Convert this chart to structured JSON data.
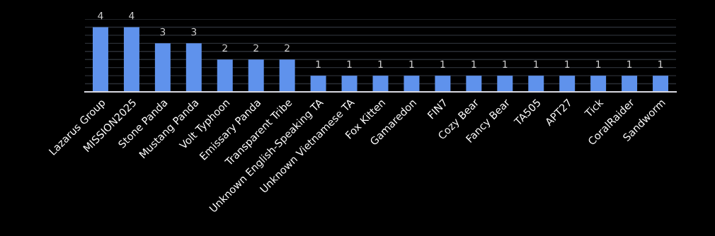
{
  "chart_data": {
    "type": "bar",
    "categories": [
      "Lazarus Group",
      "MISSION2025",
      "Stone Panda",
      "Mustang Panda",
      "Volt Typhoon",
      "Emissary Panda",
      "Transparent Tribe",
      "Unknown English-Speaking TA",
      "Unknown Vietnamese TA",
      "Fox Kitten",
      "Gamaredon",
      "FIN7",
      "Cozy Bear",
      "Fancy Bear",
      "TA505",
      "APT27",
      "Tick",
      "CoralRaider",
      "Sandworm"
    ],
    "values": [
      4,
      4,
      3,
      3,
      2,
      2,
      2,
      1,
      1,
      1,
      1,
      1,
      1,
      1,
      1,
      1,
      1,
      1,
      1
    ],
    "color": "#5f92ec",
    "ylim": [
      0,
      4.5
    ],
    "yticks": [
      {
        "value": 0,
        "label": null
      },
      {
        "value": 0.5,
        "label": null
      },
      {
        "value": 1,
        "label": null
      },
      {
        "value": 1.5,
        "label": null
      },
      {
        "value": 2,
        "label": null
      },
      {
        "value": 2.5,
        "label": null
      },
      {
        "value": 3,
        "label": null
      },
      {
        "value": 3.5,
        "label": null
      },
      {
        "value": 4,
        "label": null
      },
      {
        "value": 4.5,
        "label": null
      }
    ],
    "tick_labels": "x",
    "grid": "y",
    "data_labels": true
  }
}
